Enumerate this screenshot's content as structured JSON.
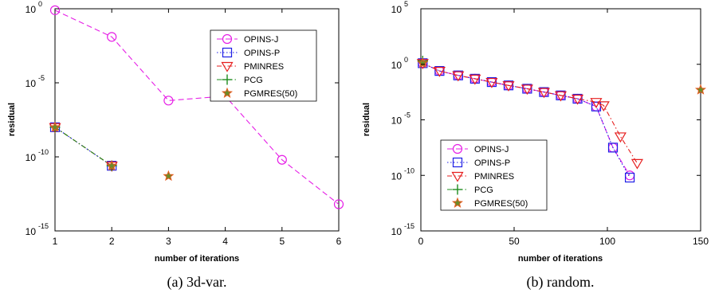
{
  "chart_data": [
    {
      "type": "line",
      "caption": "(a) 3d-var.",
      "xlabel": "number of iterations",
      "ylabel": "residual",
      "xlim": [
        1,
        6
      ],
      "ylim_log10": [
        -15,
        0
      ],
      "x_ticks": [
        1,
        2,
        3,
        4,
        5,
        6
      ],
      "y_tick_exponents": [
        0,
        -5,
        -10,
        -15
      ],
      "y_scale": "log",
      "legend_position": "top-right",
      "series": [
        {
          "name": "OPINS-J",
          "color": "#e61ee6",
          "marker": "circle",
          "dash": "7,4",
          "x": [
            1,
            2,
            3,
            4,
            5,
            6
          ],
          "log10_y": [
            -0.1,
            -1.9,
            -6.2,
            -5.9,
            -10.2,
            -13.2
          ]
        },
        {
          "name": "OPINS-P",
          "color": "#1e1ee6",
          "marker": "square",
          "dash": "1.5,2.5",
          "x": [
            1,
            2
          ],
          "log10_y": [
            -8.0,
            -10.6
          ]
        },
        {
          "name": "PMINRES",
          "color": "#e61e1e",
          "marker": "triangle",
          "dash": "6,3,1.5,3",
          "x": [
            1,
            2
          ],
          "log10_y": [
            -8.0,
            -10.6
          ]
        },
        {
          "name": "PCG",
          "color": "#1e8c1e",
          "marker": "plus",
          "dash": "6,3,1.5,3",
          "x": [
            1,
            2
          ],
          "log10_y": [
            -8.0,
            -10.6
          ]
        },
        {
          "name": "PGMRES(50)",
          "color": "#e65a1e",
          "marker": "star",
          "dash": "",
          "x": [
            1,
            2,
            3
          ],
          "log10_y": [
            -8.0,
            -10.6,
            -11.3
          ]
        }
      ]
    },
    {
      "type": "line",
      "caption": "(b) random.",
      "xlabel": "number of iterations",
      "ylabel": "residual",
      "xlim": [
        0,
        150
      ],
      "ylim_log10": [
        -15,
        5
      ],
      "x_ticks": [
        0,
        50,
        100,
        150
      ],
      "y_tick_exponents": [
        5,
        0,
        -5,
        -10,
        -15
      ],
      "y_scale": "log",
      "legend_position": "bottom-left",
      "series": [
        {
          "name": "OPINS-J",
          "color": "#e61ee6",
          "marker": "circle",
          "dash": "7,4",
          "x": [
            1,
            10,
            20,
            29,
            38,
            47,
            57,
            66,
            75,
            84,
            94,
            103,
            112
          ],
          "log10_y": [
            0.1,
            -0.6,
            -1.0,
            -1.3,
            -1.6,
            -1.9,
            -2.2,
            -2.5,
            -2.8,
            -3.1,
            -3.8,
            -7.5,
            -10.0
          ]
        },
        {
          "name": "OPINS-P",
          "color": "#1e1ee6",
          "marker": "square",
          "dash": "1.5,2.5",
          "x": [
            1,
            10,
            20,
            29,
            38,
            47,
            57,
            66,
            75,
            84,
            94,
            103,
            112
          ],
          "log10_y": [
            0.1,
            -0.6,
            -1.0,
            -1.3,
            -1.6,
            -1.9,
            -2.2,
            -2.5,
            -2.8,
            -3.1,
            -3.8,
            -7.5,
            -10.2
          ]
        },
        {
          "name": "PMINRES",
          "color": "#e61e1e",
          "marker": "triangle",
          "dash": "6,3,1.5,3",
          "x": [
            1,
            10,
            20,
            29,
            38,
            47,
            57,
            66,
            75,
            84,
            94,
            98,
            107,
            116
          ],
          "log10_y": [
            0.1,
            -0.6,
            -1.0,
            -1.3,
            -1.6,
            -1.9,
            -2.2,
            -2.5,
            -2.8,
            -3.1,
            -3.4,
            -3.7,
            -6.5,
            -8.9
          ]
        },
        {
          "name": "PCG",
          "color": "#1e8c1e",
          "marker": "plus",
          "dash": "6,3,1.5,3",
          "x": [
            1
          ],
          "log10_y": [
            0.3
          ]
        },
        {
          "name": "PGMRES(50)",
          "color": "#e65a1e",
          "marker": "star",
          "dash": "",
          "x": [
            1,
            150
          ],
          "log10_y": [
            0.1,
            -2.3
          ]
        }
      ]
    }
  ]
}
